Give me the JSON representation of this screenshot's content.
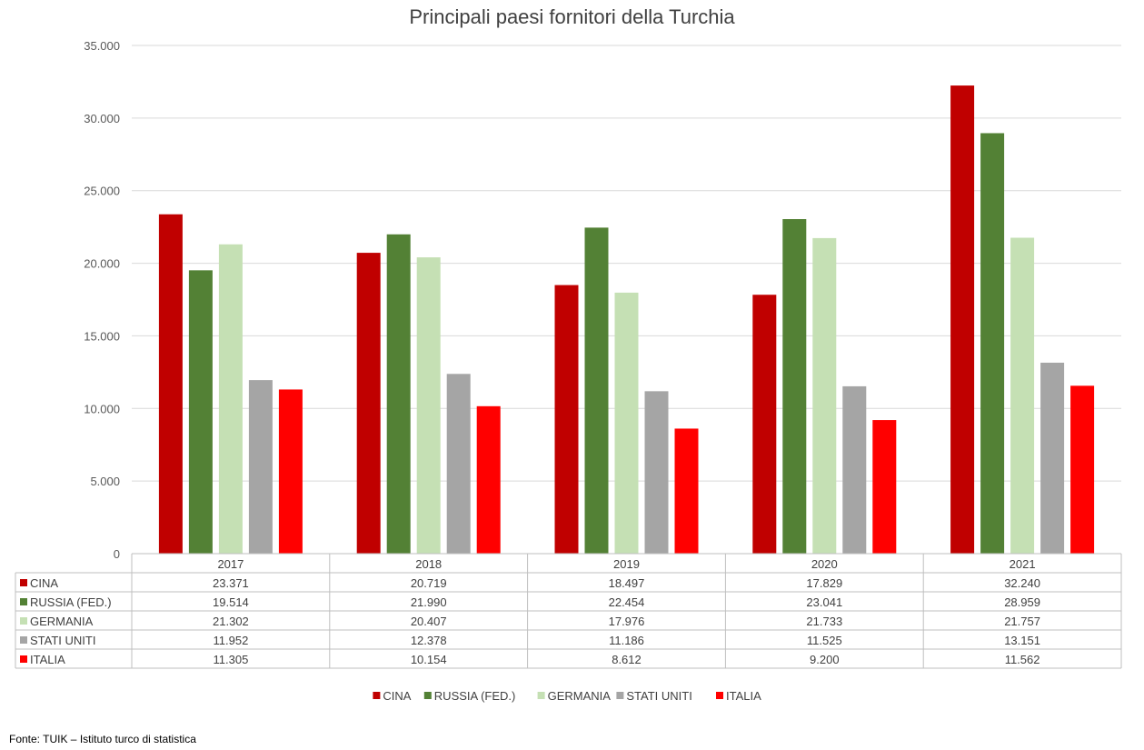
{
  "chart_data": {
    "type": "bar",
    "title": "Principali paesi fornitori della Turchia",
    "categories": [
      "2017",
      "2018",
      "2019",
      "2020",
      "2021"
    ],
    "ylim": [
      0,
      35000
    ],
    "yticks": [
      0,
      5000,
      10000,
      15000,
      20000,
      25000,
      30000,
      35000
    ],
    "ytick_labels": [
      "0",
      "5.000",
      "10.000",
      "15.000",
      "20.000",
      "25.000",
      "30.000",
      "35.000"
    ],
    "grid": true,
    "legend_position": "bottom",
    "data_table": true,
    "series": [
      {
        "name": "CINA",
        "color": "#C00000",
        "values": [
          23371,
          20719,
          18497,
          17829,
          32240
        ],
        "labels": [
          "23.371",
          "20.719",
          "18.497",
          "17.829",
          "32.240"
        ]
      },
      {
        "name": "RUSSIA (FED.)",
        "color": "#538135",
        "values": [
          19514,
          21990,
          22454,
          23041,
          28959
        ],
        "labels": [
          "19.514",
          "21.990",
          "22.454",
          "23.041",
          "28.959"
        ]
      },
      {
        "name": "GERMANIA",
        "color": "#C5E0B4",
        "values": [
          21302,
          20407,
          17976,
          21733,
          21757
        ],
        "labels": [
          "21.302",
          "20.407",
          "17.976",
          "21.733",
          "21.757"
        ]
      },
      {
        "name": "STATI UNITI",
        "color": "#A5A5A5",
        "values": [
          11952,
          12378,
          11186,
          11525,
          13151
        ],
        "labels": [
          "11.952",
          "12.378",
          "11.186",
          "11.525",
          "13.151"
        ]
      },
      {
        "name": "ITALIA",
        "color": "#FF0000",
        "values": [
          11305,
          10154,
          8612,
          9200,
          11562
        ],
        "labels": [
          "11.305",
          "10.154",
          "8.612",
          "9.200",
          "11.562"
        ]
      }
    ]
  },
  "source": "Fonte: TUIK – Istituto turco di statistica"
}
